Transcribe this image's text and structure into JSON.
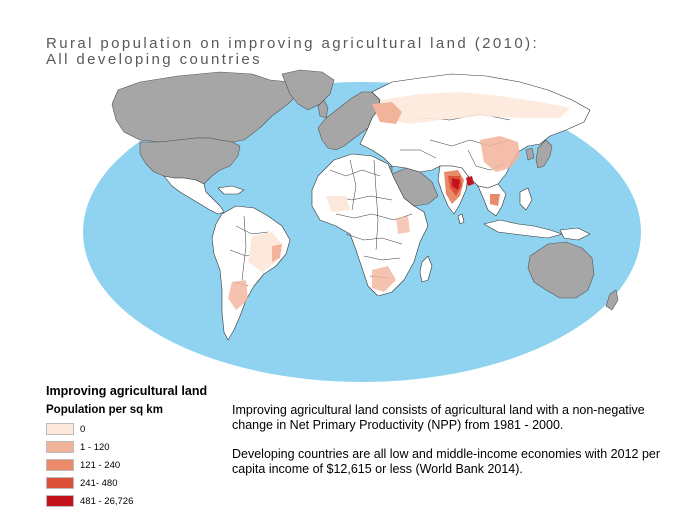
{
  "title": {
    "line1": "Rural population on improving agricultural land (2010):",
    "line2": "All developing countries"
  },
  "legend": {
    "title": "Improving agricultural land",
    "subtitle": "Population per sq km",
    "classes": [
      {
        "label": "0",
        "color": "#fde9dc"
      },
      {
        "label": "1 - 120",
        "color": "#f2b39b"
      },
      {
        "label": "121 - 240",
        "color": "#e98a6a"
      },
      {
        "label": "241- 480",
        "color": "#dd5038"
      },
      {
        "label": "481 - 26,726",
        "color": "#c4121a"
      }
    ]
  },
  "notes": {
    "p1": "Improving agricultural land consists of agricultural land with a non-negative change in Net Primary Productivity (NPP) from 1981 - 2000.",
    "p2": "Developing countries are all low and middle-income economies with 2012 per capita income of $12,615 or less (World Bank 2014)."
  },
  "map_colors": {
    "ocean": "#8fd3f0",
    "developed": "#a6a6a6",
    "developing": "#ffffff",
    "border": "#333333"
  }
}
